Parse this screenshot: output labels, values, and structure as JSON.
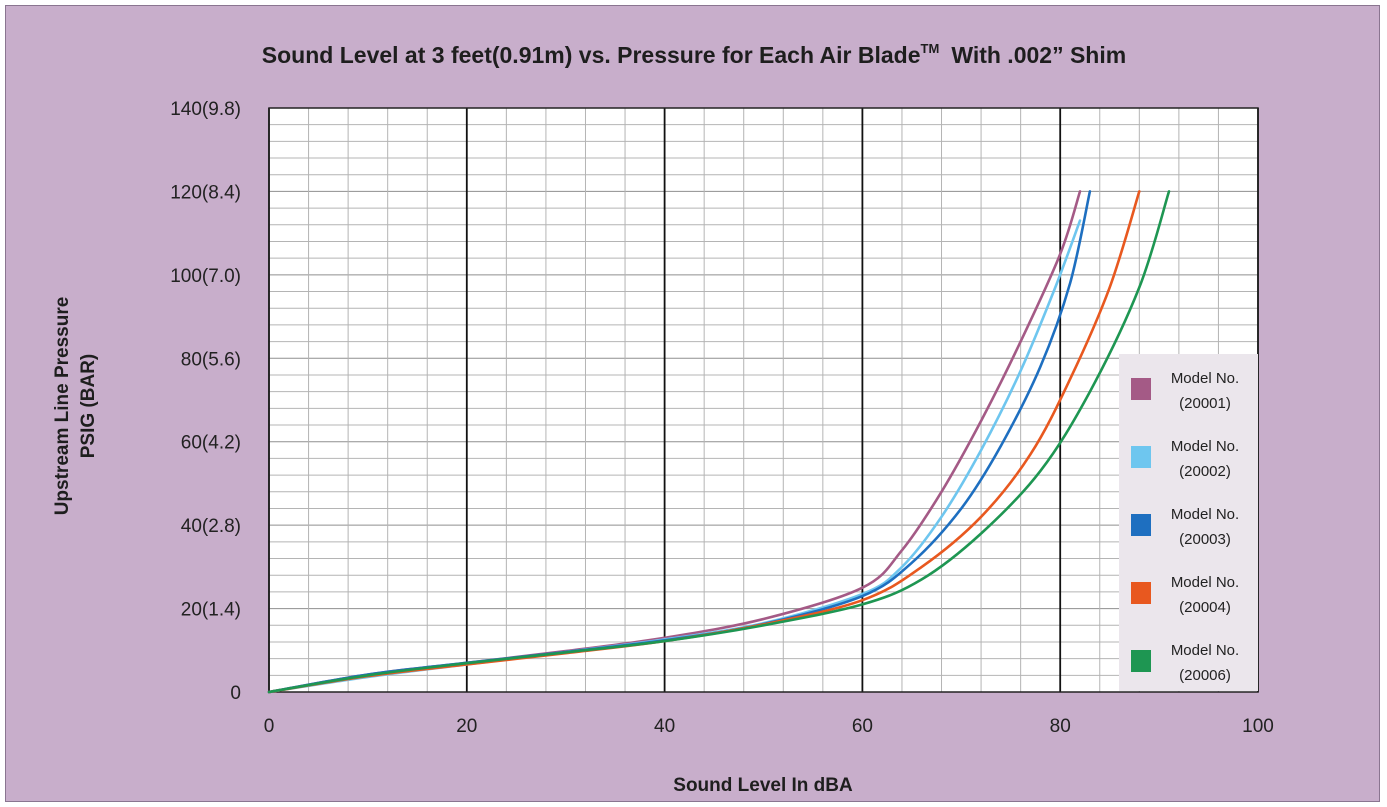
{
  "chart_data": {
    "type": "line",
    "title": "Sound Level at 3 feet(0.91m) vs. Pressure for Each Air Blade",
    "title_trademark": "TM",
    "title_suffix": "With .002” Shim",
    "xlabel": "Sound Level In dBA",
    "ylabel_line1": "Upstream Line Pressure",
    "ylabel_line2": "PSIG (BAR)",
    "xlim": [
      0,
      100
    ],
    "ylim": [
      0,
      140
    ],
    "x_ticks": [
      "0",
      "20",
      "40",
      "60",
      "80",
      "100"
    ],
    "y_ticks": [
      "0",
      "20(1.4)",
      "40(2.8)",
      "60(4.2)",
      "80(5.6)",
      "100(7.0)",
      "120(8.4)",
      "140(9.8)"
    ],
    "grid": true,
    "legend_position": "right",
    "series": [
      {
        "name": "Model No. (20001)",
        "color": "#a45a86",
        "points": [
          [
            0,
            0
          ],
          [
            10,
            4.2
          ],
          [
            20,
            7.0
          ],
          [
            30,
            9.8
          ],
          [
            40,
            13
          ],
          [
            50,
            17.5
          ],
          [
            60,
            25
          ],
          [
            64,
            34
          ],
          [
            68,
            48
          ],
          [
            72,
            65
          ],
          [
            76,
            84
          ],
          [
            80,
            105
          ],
          [
            82,
            120
          ]
        ]
      },
      {
        "name": "Model No. (20002)",
        "color": "#6ec6ef",
        "points": [
          [
            0,
            0
          ],
          [
            10,
            3.6
          ],
          [
            20,
            6.6
          ],
          [
            30,
            9.6
          ],
          [
            40,
            12.6
          ],
          [
            50,
            16.5
          ],
          [
            60,
            23.5
          ],
          [
            64,
            30
          ],
          [
            68,
            42
          ],
          [
            72,
            58
          ],
          [
            76,
            77
          ],
          [
            79.5,
            97
          ],
          [
            82,
            113
          ]
        ]
      },
      {
        "name": "Model No. (20003)",
        "color": "#1e6fc0",
        "points": [
          [
            0,
            0
          ],
          [
            10,
            4.2
          ],
          [
            20,
            7.0
          ],
          [
            30,
            9.6
          ],
          [
            40,
            12.4
          ],
          [
            50,
            16.3
          ],
          [
            60,
            23
          ],
          [
            65,
            31
          ],
          [
            70,
            44
          ],
          [
            74,
            59
          ],
          [
            78,
            78
          ],
          [
            81,
            98
          ],
          [
            83,
            120
          ]
        ]
      },
      {
        "name": "Model No. (20004)",
        "color": "#e8581f",
        "points": [
          [
            0,
            0
          ],
          [
            10,
            3.8
          ],
          [
            20,
            6.6
          ],
          [
            30,
            9.3
          ],
          [
            40,
            12.2
          ],
          [
            50,
            16.2
          ],
          [
            60,
            22
          ],
          [
            66,
            30
          ],
          [
            72,
            42
          ],
          [
            77,
            57
          ],
          [
            81,
            75
          ],
          [
            85,
            97
          ],
          [
            88,
            120
          ]
        ]
      },
      {
        "name": "Model No. (20006)",
        "color": "#1e9652",
        "points": [
          [
            0,
            0
          ],
          [
            10,
            4.0
          ],
          [
            20,
            6.9
          ],
          [
            30,
            9.5
          ],
          [
            40,
            12.2
          ],
          [
            50,
            16
          ],
          [
            60,
            21
          ],
          [
            66,
            27
          ],
          [
            72,
            38
          ],
          [
            78,
            53
          ],
          [
            83,
            72
          ],
          [
            88,
            97
          ],
          [
            91,
            120
          ]
        ]
      }
    ]
  }
}
